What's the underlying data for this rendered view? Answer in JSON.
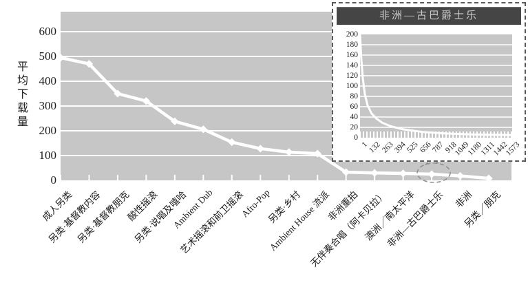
{
  "figure": {
    "y_axis_title": "平均下载量",
    "inset_title": "非洲—古巴爵士乐"
  },
  "colors": {
    "plot_bg": "#c6c6c6",
    "grid": "#ffffff",
    "series": "#ffffff",
    "text": "#1c1c1c",
    "inset_title_bg": "#454545",
    "inset_title_text": "#c9c9c9",
    "inset_border": "#5a5a5a",
    "annotation": "#8f8f8f"
  },
  "chart_data": [
    {
      "id": "main",
      "type": "line",
      "ylabel": "平均下载量",
      "ylim": [
        0,
        600
      ],
      "yticks": [
        0,
        100,
        200,
        300,
        400,
        500,
        600
      ],
      "grid": true,
      "legend": false,
      "categories": [
        "成人另类",
        "另类·基督教内容",
        "另类·基督教朋克",
        "酸性摇滚",
        "另类·说唱及嘻哈",
        "Ambient Dub",
        "艺术摇滚和前卫摇滚",
        "Afro-Pop",
        "另类·乡村",
        "Ambient House 流派",
        "非洲重拍",
        "无伴奏合唱（阿卡贝拉）",
        "澳洲／南太平洋",
        "非洲—古巴爵士乐",
        "非洲",
        "另类／朋克"
      ],
      "values": [
        495,
        470,
        350,
        320,
        238,
        206,
        154,
        128,
        114,
        108,
        33,
        30,
        28,
        25,
        18,
        8
      ],
      "annotation": {
        "type": "dashed-ellipse",
        "category_index": 13,
        "category": "非洲—古巴爵士乐"
      }
    },
    {
      "id": "inset",
      "type": "line",
      "title": "非洲—古巴爵士乐",
      "xlim": [
        1,
        1573
      ],
      "ylim": [
        0,
        200
      ],
      "yticks": [
        0,
        20,
        40,
        60,
        80,
        100,
        120,
        140,
        160,
        180,
        200
      ],
      "xticks": [
        1,
        132,
        263,
        394,
        525,
        656,
        787,
        918,
        1049,
        1180,
        1311,
        1442,
        1573
      ],
      "grid": true,
      "legend": false,
      "curve_samples": {
        "x": [
          1,
          15,
          30,
          50,
          80,
          120,
          170,
          230,
          320,
          450,
          650,
          900,
          1200,
          1573
        ],
        "y": [
          200,
          150,
          115,
          85,
          62,
          47,
          37,
          29,
          22,
          16,
          11,
          8,
          6,
          5
        ]
      }
    }
  ]
}
